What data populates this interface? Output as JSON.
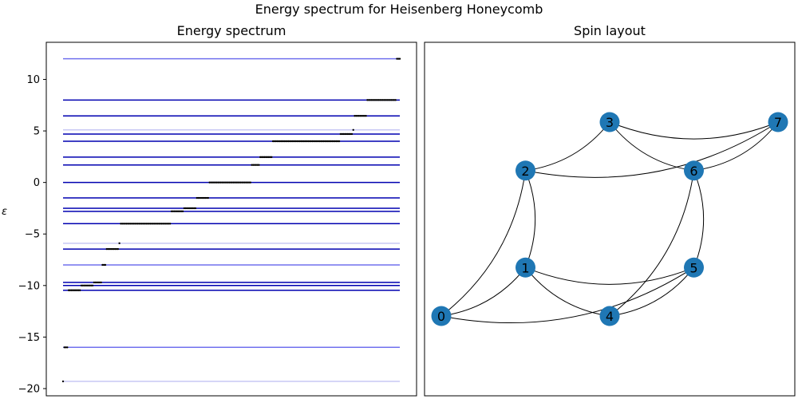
{
  "suptitle": "Energy spectrum for Heisenberg Honeycomb",
  "chart_data": [
    {
      "type": "line",
      "title": "Energy spectrum",
      "ylabel": "ε",
      "ylim": [
        -20.7,
        13.6
      ],
      "yticks": [
        10,
        5,
        0,
        -5,
        -10,
        -15,
        -20
      ],
      "xticks": [],
      "levels": [
        {
          "y": 12.0,
          "color": "#7070ee"
        },
        {
          "y": 8.0,
          "color": "#0000b0"
        },
        {
          "y": 6.46,
          "color": "#0000b0"
        },
        {
          "y": 5.1,
          "color": "#c8c8f4"
        },
        {
          "y": 4.7,
          "color": "#0000b0"
        },
        {
          "y": 4.0,
          "color": "#0000b0"
        },
        {
          "y": 2.46,
          "color": "#0000b0"
        },
        {
          "y": 1.7,
          "color": "#0000b0"
        },
        {
          "y": 0.0,
          "color": "#0000b0"
        },
        {
          "y": -1.5,
          "color": "#0000b0"
        },
        {
          "y": -2.5,
          "color": "#0000b0"
        },
        {
          "y": -2.8,
          "color": "#0000b0"
        },
        {
          "y": -4.0,
          "color": "#0000b0"
        },
        {
          "y": -5.9,
          "color": "#c8c8f4"
        },
        {
          "y": -6.46,
          "color": "#0000b0"
        },
        {
          "y": -8.0,
          "color": "#7070ee"
        },
        {
          "y": -9.7,
          "color": "#0000b0"
        },
        {
          "y": -10.0,
          "color": "#0000b0"
        },
        {
          "y": -10.46,
          "color": "#0000b0"
        },
        {
          "y": -16.0,
          "color": "#7070ee"
        },
        {
          "y": -19.3,
          "color": "#c8c8f4"
        }
      ],
      "eigen_groups": [
        {
          "y": -19.3,
          "count": 1
        },
        {
          "y": -16.0,
          "count": 3
        },
        {
          "y": -10.46,
          "count": 9
        },
        {
          "y": -10.0,
          "count": 9
        },
        {
          "y": -9.7,
          "count": 6
        },
        {
          "y": -8.0,
          "count": 3
        },
        {
          "y": -6.46,
          "count": 9
        },
        {
          "y": -5.9,
          "count": 1
        },
        {
          "y": -4.0,
          "count": 36
        },
        {
          "y": -2.8,
          "count": 9
        },
        {
          "y": -2.5,
          "count": 9
        },
        {
          "y": -1.5,
          "count": 9
        },
        {
          "y": 0.0,
          "count": 30
        },
        {
          "y": 1.7,
          "count": 6
        },
        {
          "y": 2.46,
          "count": 9
        },
        {
          "y": 4.0,
          "count": 48
        },
        {
          "y": 4.7,
          "count": 9
        },
        {
          "y": 5.1,
          "count": 1
        },
        {
          "y": 6.46,
          "count": 9
        },
        {
          "y": 8.0,
          "count": 21
        },
        {
          "y": 12.0,
          "count": 3
        }
      ]
    },
    {
      "type": "graph",
      "title": "Spin layout",
      "node_color": "#1f77b4",
      "nodes": [
        {
          "id": "0",
          "x": 0,
          "y": 0
        },
        {
          "id": "1",
          "x": 1,
          "y": 0.5
        },
        {
          "id": "2",
          "x": 1,
          "y": 1.5
        },
        {
          "id": "3",
          "x": 2,
          "y": 2
        },
        {
          "id": "4",
          "x": 2,
          "y": 0
        },
        {
          "id": "5",
          "x": 3,
          "y": 0.5
        },
        {
          "id": "6",
          "x": 3,
          "y": 1.5
        },
        {
          "id": "7",
          "x": 4,
          "y": 2
        }
      ],
      "edges": [
        [
          "0",
          "1"
        ],
        [
          "0",
          "5"
        ],
        [
          "0",
          "2"
        ],
        [
          "1",
          "2"
        ],
        [
          "1",
          "4"
        ],
        [
          "2",
          "3"
        ],
        [
          "2",
          "7"
        ],
        [
          "3",
          "6"
        ],
        [
          "3",
          "7"
        ],
        [
          "4",
          "5"
        ],
        [
          "4",
          "6"
        ],
        [
          "5",
          "6"
        ],
        [
          "6",
          "7"
        ],
        [
          "1",
          "5"
        ]
      ]
    }
  ]
}
